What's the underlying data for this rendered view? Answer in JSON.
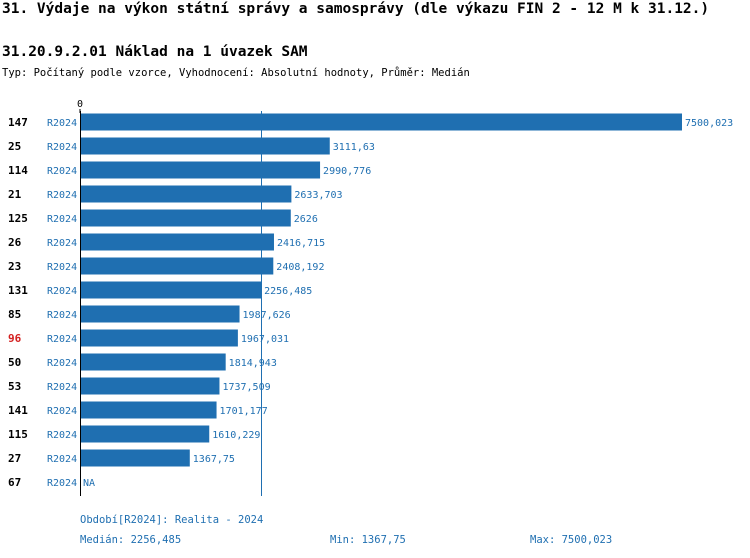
{
  "header": {
    "title": "31. Výdaje na výkon státní správy a samosprávy (dle výkazu FIN 2 - 12 M k 31.12.)",
    "subtitle": "31.20.9.2.01 Náklad na 1 úvazek SAM",
    "type_line": "Typ: Počítaný podle vzorce, Vyhodnocení: Absolutní hodnoty, Průměr: Medián"
  },
  "colors": {
    "bar": "#1f6fb1",
    "text": "#1f6fb1",
    "highlight": "#d42020",
    "axis": "#000000",
    "median_line": "#1f6fb1"
  },
  "chart_data": {
    "type": "bar",
    "orientation": "horizontal",
    "axis_zero_label": "0",
    "xlim": [
      0,
      7500.023
    ],
    "median": 2256.485,
    "period_tag": "R2024",
    "highlighted_id": "96",
    "rows": [
      {
        "id": "147",
        "period": "R2024",
        "value": 7500.023,
        "label": "7500,023"
      },
      {
        "id": "25",
        "period": "R2024",
        "value": 3111.63,
        "label": "3111,63"
      },
      {
        "id": "114",
        "period": "R2024",
        "value": 2990.776,
        "label": "2990,776"
      },
      {
        "id": "21",
        "period": "R2024",
        "value": 2633.703,
        "label": "2633,703"
      },
      {
        "id": "125",
        "period": "R2024",
        "value": 2626,
        "label": "2626"
      },
      {
        "id": "26",
        "period": "R2024",
        "value": 2416.715,
        "label": "2416,715"
      },
      {
        "id": "23",
        "period": "R2024",
        "value": 2408.192,
        "label": "2408,192"
      },
      {
        "id": "131",
        "period": "R2024",
        "value": 2256.485,
        "label": "2256,485"
      },
      {
        "id": "85",
        "period": "R2024",
        "value": 1987.626,
        "label": "1987,626"
      },
      {
        "id": "96",
        "period": "R2024",
        "value": 1967.031,
        "label": "1967,031"
      },
      {
        "id": "50",
        "period": "R2024",
        "value": 1814.943,
        "label": "1814,943"
      },
      {
        "id": "53",
        "period": "R2024",
        "value": 1737.509,
        "label": "1737,509"
      },
      {
        "id": "141",
        "period": "R2024",
        "value": 1701.177,
        "label": "1701,177"
      },
      {
        "id": "115",
        "period": "R2024",
        "value": 1610.229,
        "label": "1610,229"
      },
      {
        "id": "27",
        "period": "R2024",
        "value": 1367.75,
        "label": "1367,75"
      },
      {
        "id": "67",
        "period": "R2024",
        "value": null,
        "label": "NA"
      }
    ]
  },
  "footer": {
    "period_note": "Období[R2024]: Realita - 2024",
    "median_text": "Medián: 2256,485",
    "min_text": "Min: 1367,75",
    "max_text": "Max: 7500,023"
  }
}
